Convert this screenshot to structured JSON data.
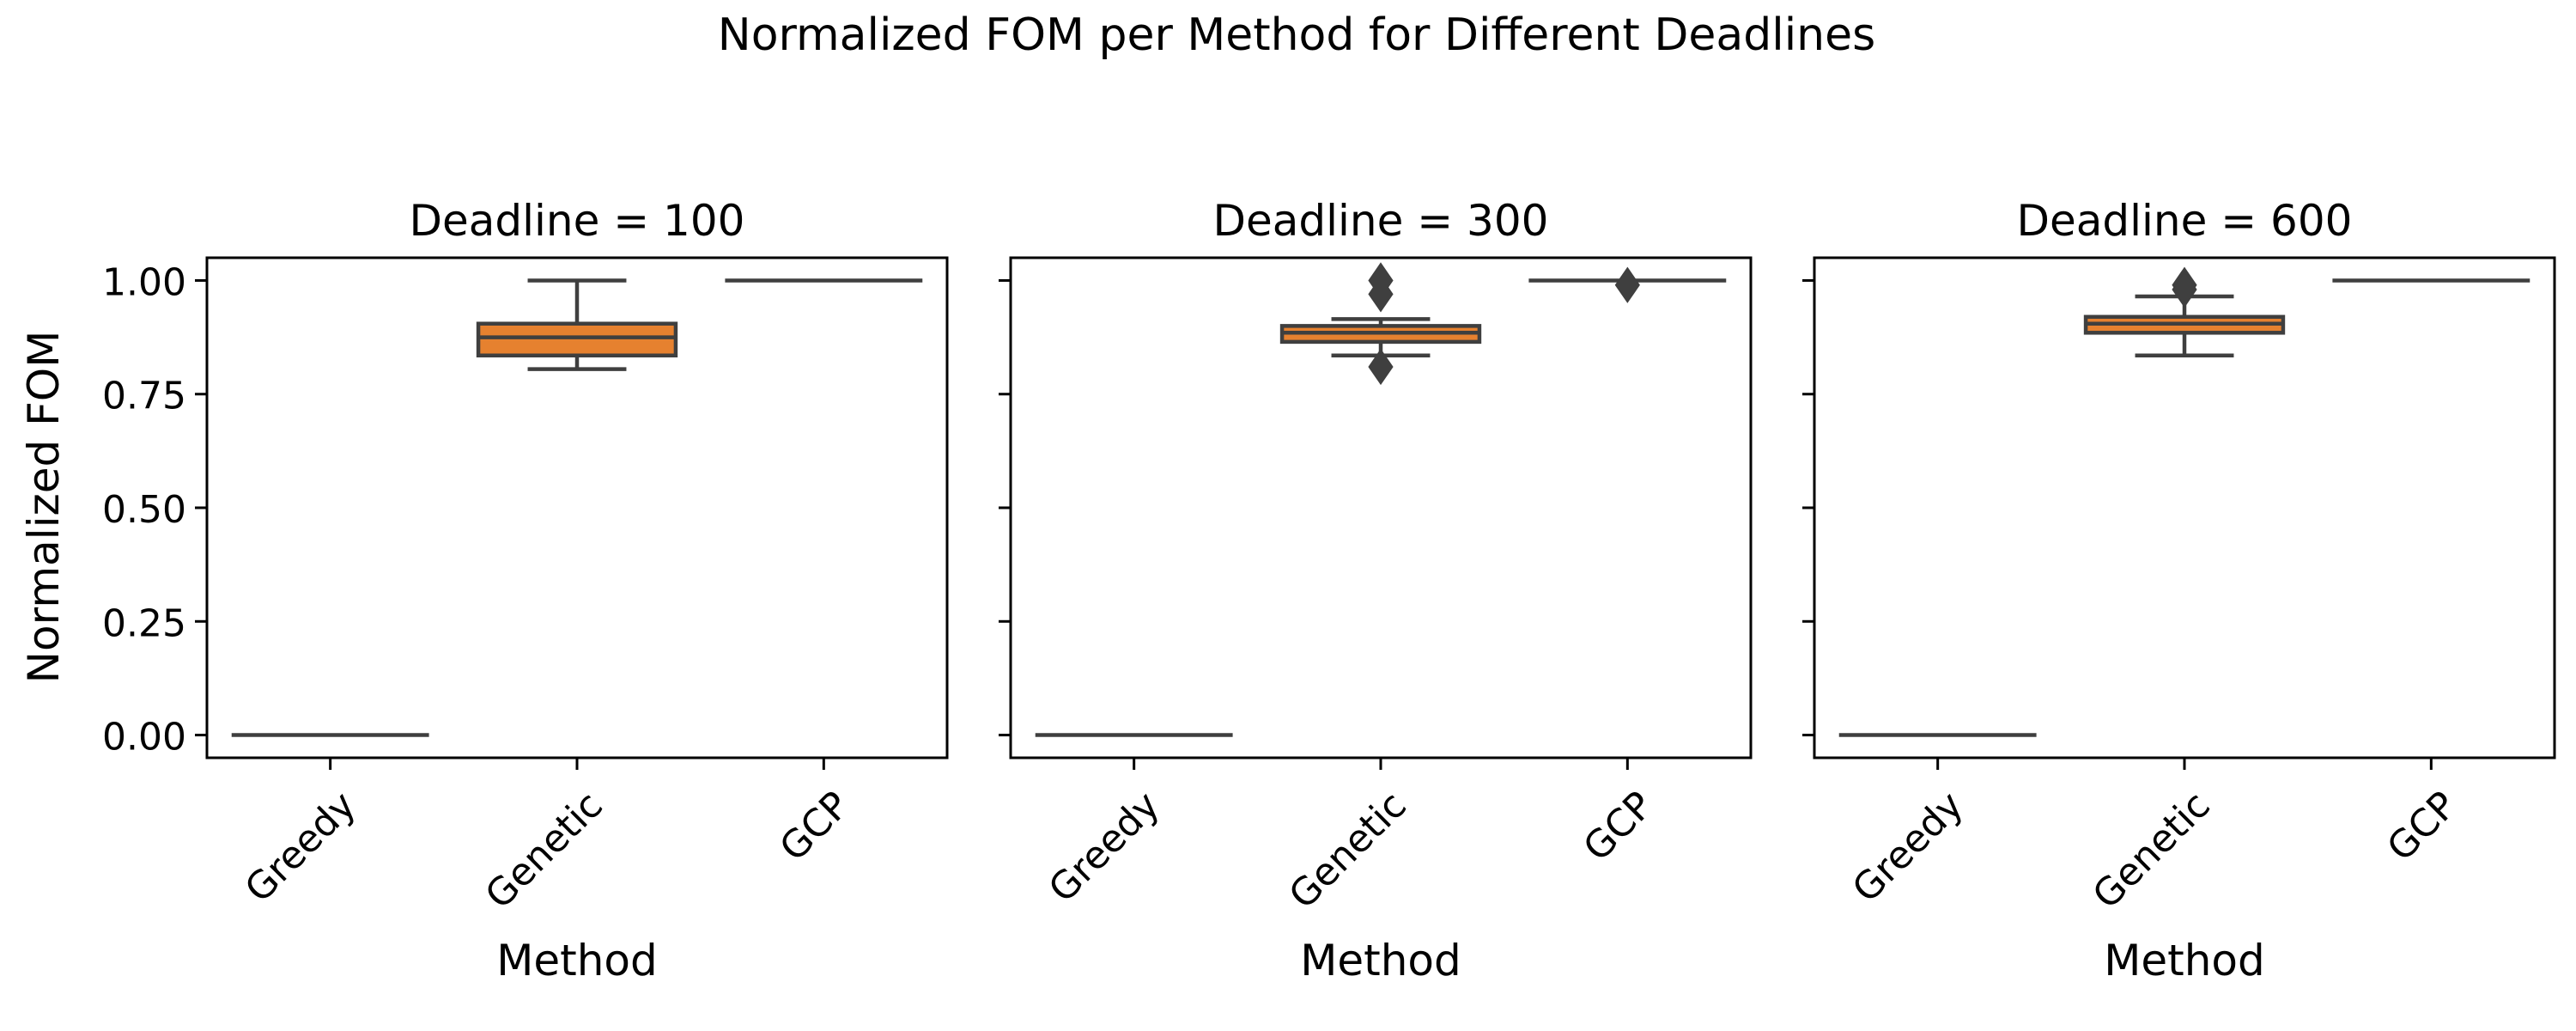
{
  "figure": {
    "title": "Normalized FOM per Method for Different Deadlines",
    "ylabel": "Normalized FOM"
  },
  "style": {
    "box_fill": "#e6812f",
    "line_color": "#3f3f3f",
    "frame_color": "#000000"
  },
  "chart_data": [
    {
      "type": "box",
      "title": "Deadline = 100",
      "xlabel": "Method",
      "ylabel": "Normalized FOM",
      "categories": [
        "Greedy",
        "Genetic",
        "GCP"
      ],
      "ylim": [
        -0.05,
        1.05
      ],
      "yticks": [
        0.0,
        0.25,
        0.5,
        0.75,
        1.0
      ],
      "ytick_labels": [
        "0.00",
        "0.25",
        "0.50",
        "0.75",
        "1.00"
      ],
      "boxes": [
        {
          "category": "Greedy",
          "whislo": 0.0,
          "q1": 0.0,
          "med": 0.0,
          "q3": 0.0,
          "whishi": 0.0,
          "fliers": []
        },
        {
          "category": "Genetic",
          "whislo": 0.805,
          "q1": 0.835,
          "med": 0.875,
          "q3": 0.905,
          "whishi": 1.0,
          "fliers": []
        },
        {
          "category": "GCP",
          "whislo": 1.0,
          "q1": 1.0,
          "med": 1.0,
          "q3": 1.0,
          "whishi": 1.0,
          "fliers": []
        }
      ]
    },
    {
      "type": "box",
      "title": "Deadline = 300",
      "xlabel": "Method",
      "ylabel": "Normalized FOM",
      "categories": [
        "Greedy",
        "Genetic",
        "GCP"
      ],
      "ylim": [
        -0.05,
        1.05
      ],
      "yticks": [
        0.0,
        0.25,
        0.5,
        0.75,
        1.0
      ],
      "ytick_labels": [
        "",
        "",
        "",
        "",
        ""
      ],
      "boxes": [
        {
          "category": "Greedy",
          "whislo": 0.0,
          "q1": 0.0,
          "med": 0.0,
          "q3": 0.0,
          "whishi": 0.0,
          "fliers": []
        },
        {
          "category": "Genetic",
          "whislo": 0.835,
          "q1": 0.865,
          "med": 0.885,
          "q3": 0.9,
          "whishi": 0.915,
          "fliers": [
            1.0,
            0.97,
            0.81
          ]
        },
        {
          "category": "GCP",
          "whislo": 1.0,
          "q1": 1.0,
          "med": 1.0,
          "q3": 1.0,
          "whishi": 1.0,
          "fliers": [
            0.99
          ]
        }
      ]
    },
    {
      "type": "box",
      "title": "Deadline = 600",
      "xlabel": "Method",
      "ylabel": "Normalized FOM",
      "categories": [
        "Greedy",
        "Genetic",
        "GCP"
      ],
      "ylim": [
        -0.05,
        1.05
      ],
      "yticks": [
        0.0,
        0.25,
        0.5,
        0.75,
        1.0
      ],
      "ytick_labels": [
        "",
        "",
        "",
        "",
        ""
      ],
      "boxes": [
        {
          "category": "Greedy",
          "whislo": 0.0,
          "q1": 0.0,
          "med": 0.0,
          "q3": 0.0,
          "whishi": 0.0,
          "fliers": []
        },
        {
          "category": "Genetic",
          "whislo": 0.835,
          "q1": 0.885,
          "med": 0.905,
          "q3": 0.92,
          "whishi": 0.965,
          "fliers": [
            0.99,
            0.98
          ]
        },
        {
          "category": "GCP",
          "whislo": 1.0,
          "q1": 1.0,
          "med": 1.0,
          "q3": 1.0,
          "whishi": 1.0,
          "fliers": []
        }
      ]
    }
  ]
}
